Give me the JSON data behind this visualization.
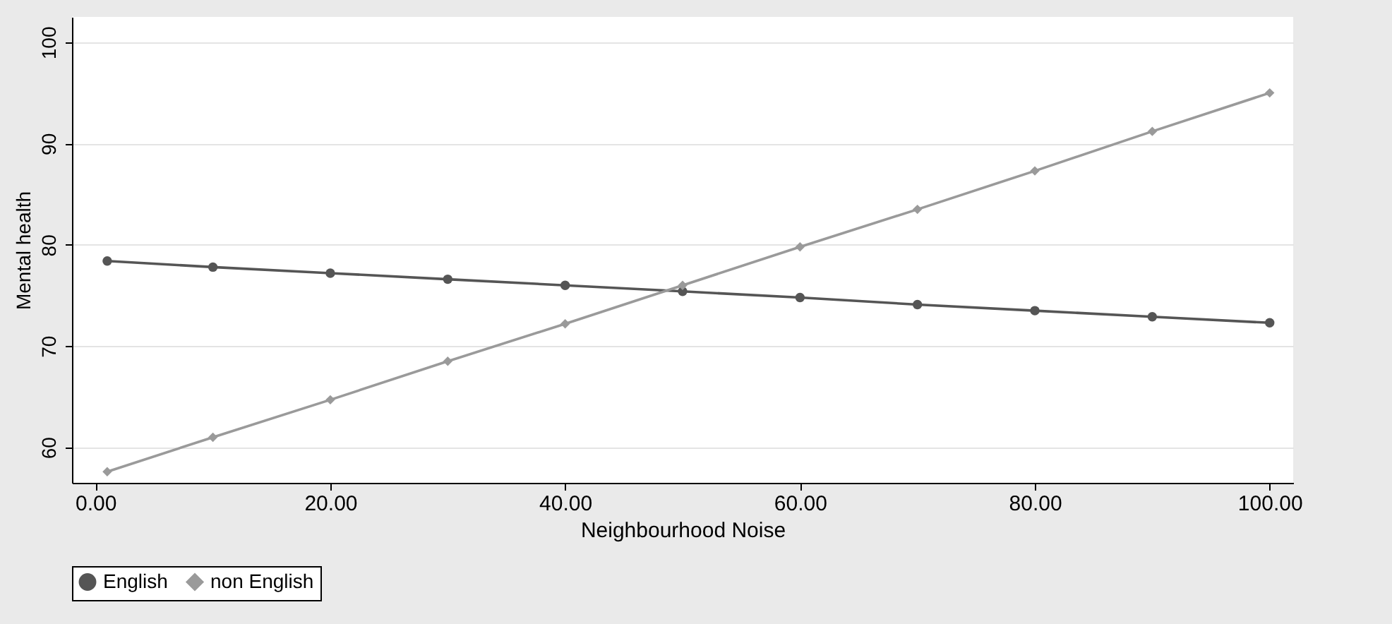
{
  "chart_data": {
    "type": "line",
    "xlabel": "Neighbourhood Noise",
    "ylabel": "Mental health",
    "xlim": [
      -2,
      102
    ],
    "ylim": [
      56.5,
      102.5
    ],
    "xticks": [
      {
        "value": 0,
        "label": "0.00"
      },
      {
        "value": 20,
        "label": "20.00"
      },
      {
        "value": 40,
        "label": "40.00"
      },
      {
        "value": 60,
        "label": "60.00"
      },
      {
        "value": 80,
        "label": "80.00"
      },
      {
        "value": 100,
        "label": "100.00"
      }
    ],
    "yticks": [
      60,
      70,
      80,
      90,
      100
    ],
    "grid": "y",
    "legend": "bottom",
    "series": [
      {
        "name": "English",
        "color": "#555555",
        "marker": "circle",
        "x": [
          1,
          10,
          20,
          30,
          40,
          50,
          60,
          70,
          80,
          90,
          100
        ],
        "values": [
          78.4,
          77.8,
          77.2,
          76.6,
          76.0,
          75.4,
          74.8,
          74.1,
          73.5,
          72.9,
          72.3
        ]
      },
      {
        "name": "non English",
        "color": "#9a9a9a",
        "marker": "diamond",
        "x": [
          1,
          10,
          20,
          30,
          40,
          50,
          60,
          70,
          80,
          90,
          100
        ],
        "values": [
          57.6,
          61.0,
          64.7,
          68.5,
          72.2,
          76.0,
          79.8,
          83.5,
          87.3,
          91.2,
          95.0
        ]
      }
    ]
  }
}
